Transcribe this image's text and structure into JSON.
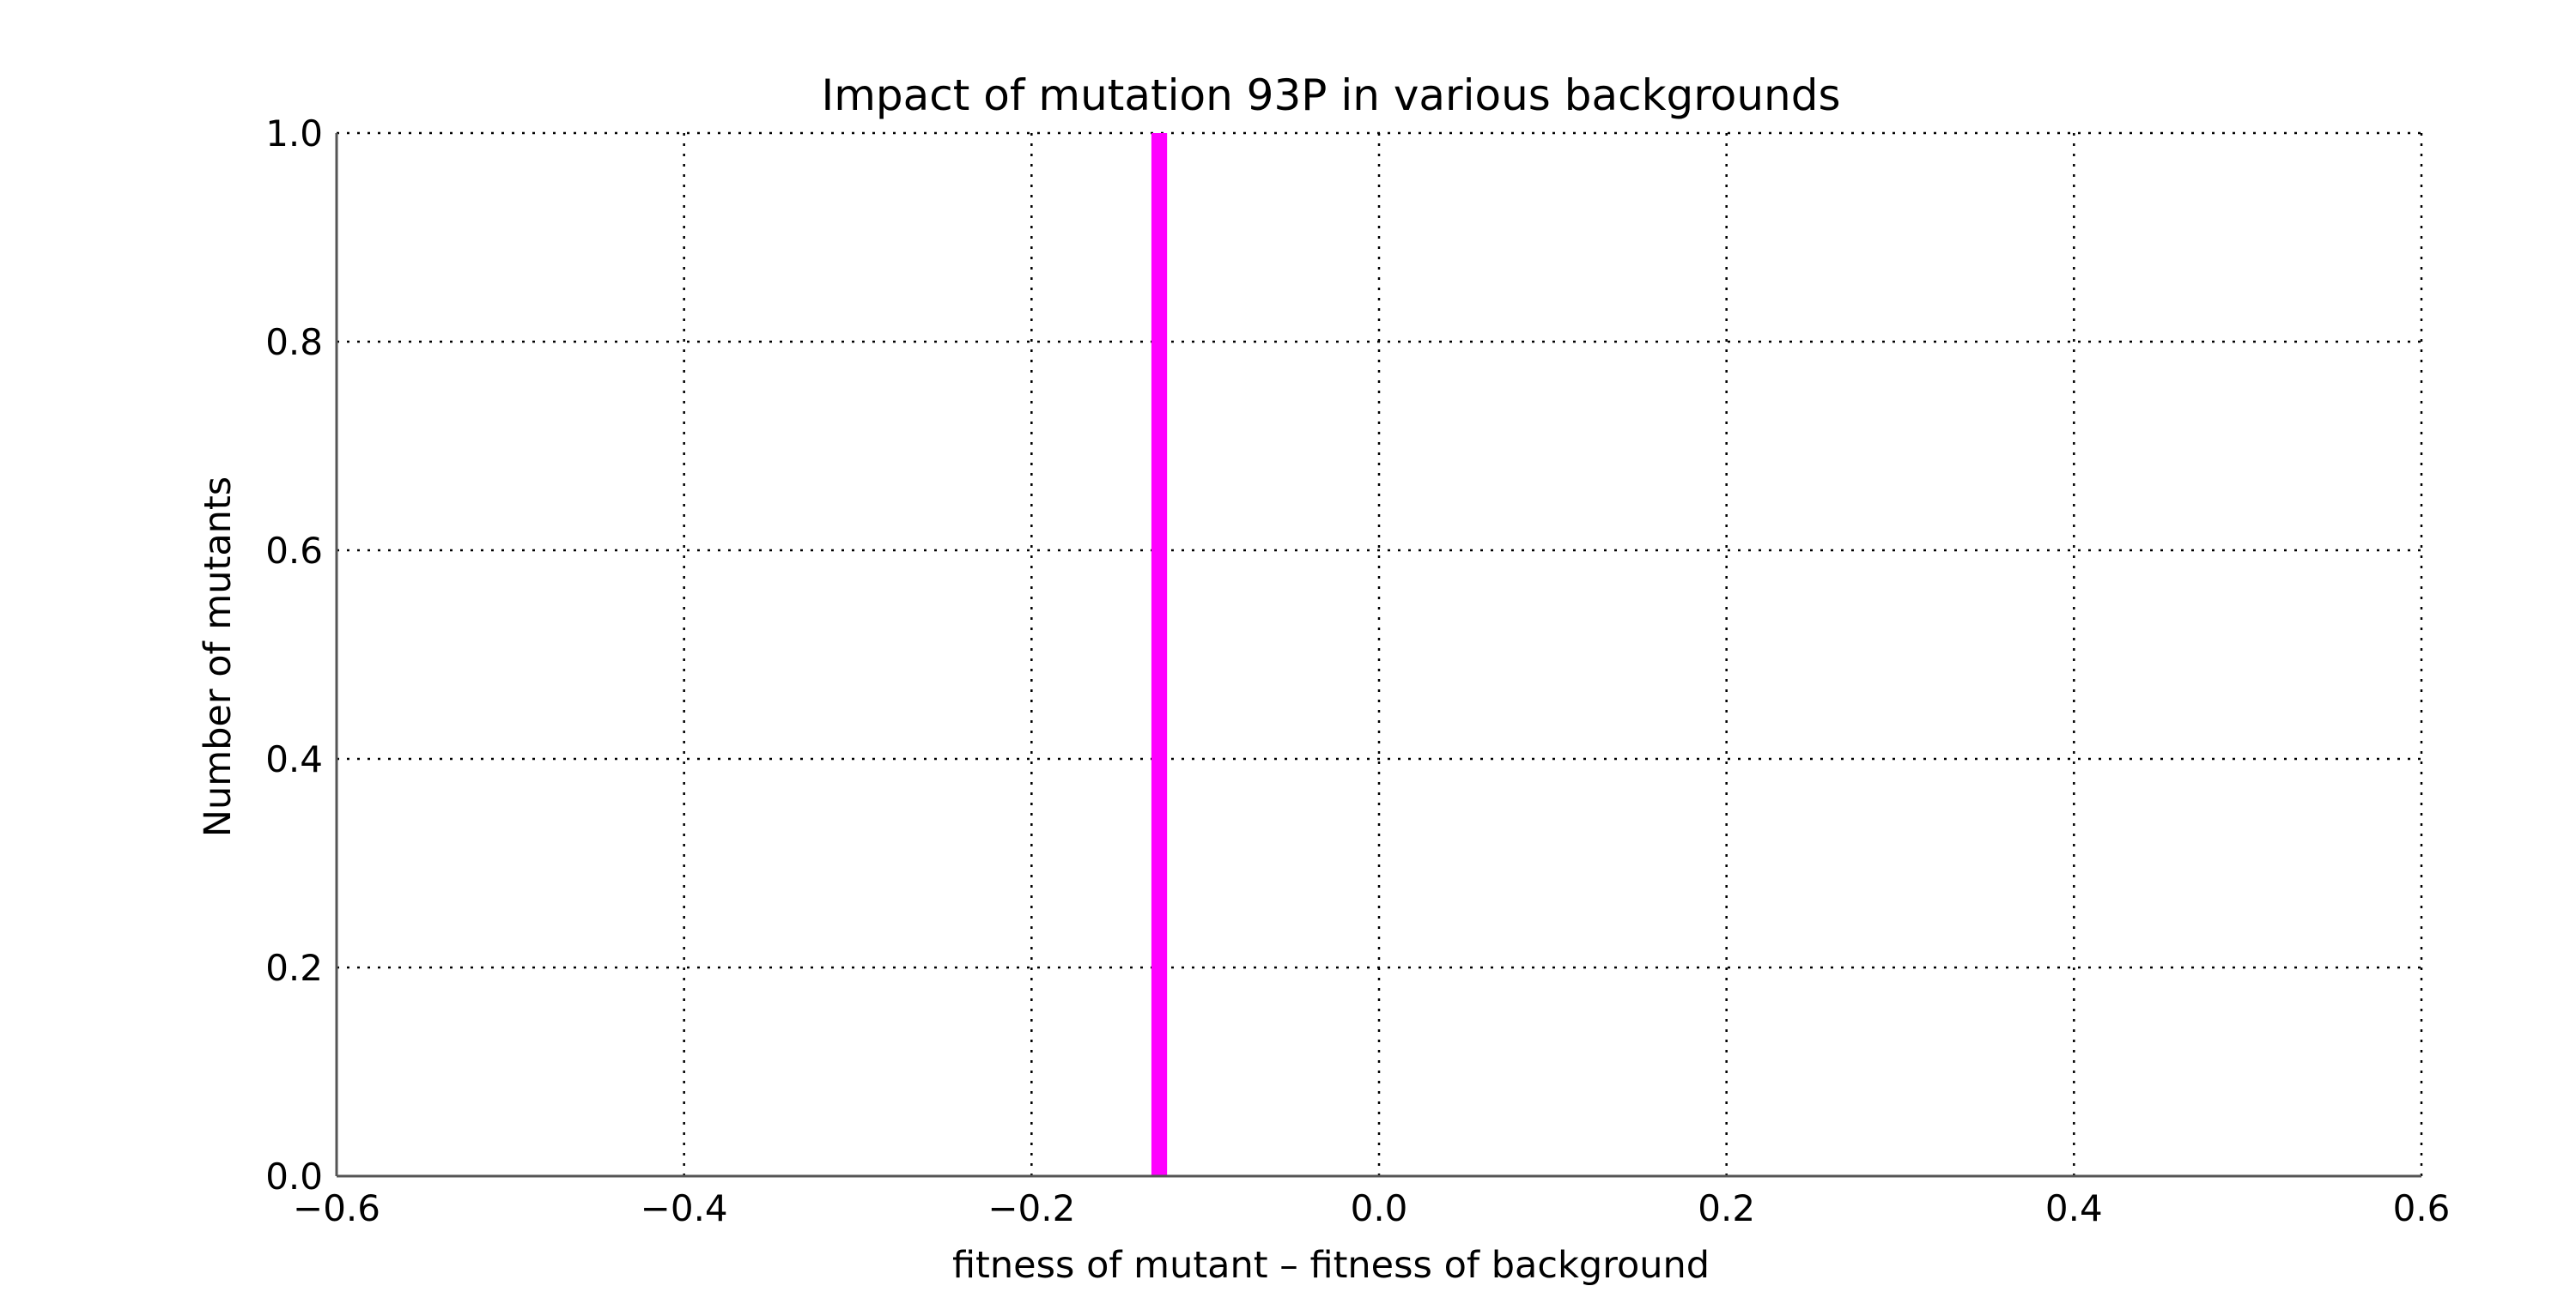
{
  "chart_data": {
    "type": "bar",
    "title": "Impact of mutation 93P in various backgrounds",
    "xlabel": "fitness of mutant  –  fitness of background",
    "ylabel": "Number of mutants",
    "xlim": [
      -0.6,
      0.6
    ],
    "ylim": [
      0.0,
      1.0
    ],
    "xticks": [
      -0.6,
      -0.4,
      -0.2,
      0.0,
      0.2,
      0.4,
      0.6
    ],
    "xtick_labels": [
      "−0.6",
      "−0.4",
      "−0.2",
      "0.0",
      "0.2",
      "0.4",
      "0.6"
    ],
    "yticks": [
      0.0,
      0.2,
      0.4,
      0.6,
      0.8,
      1.0
    ],
    "ytick_labels": [
      "0.0",
      "0.2",
      "0.4",
      "0.6",
      "0.8",
      "1.0"
    ],
    "grid": true,
    "bars": [
      {
        "x_start": -0.131,
        "x_end": -0.122,
        "value": 1.0
      }
    ],
    "colors": {
      "bar": "#ff00ff",
      "grid": "#000000",
      "axis": "#555555"
    }
  }
}
